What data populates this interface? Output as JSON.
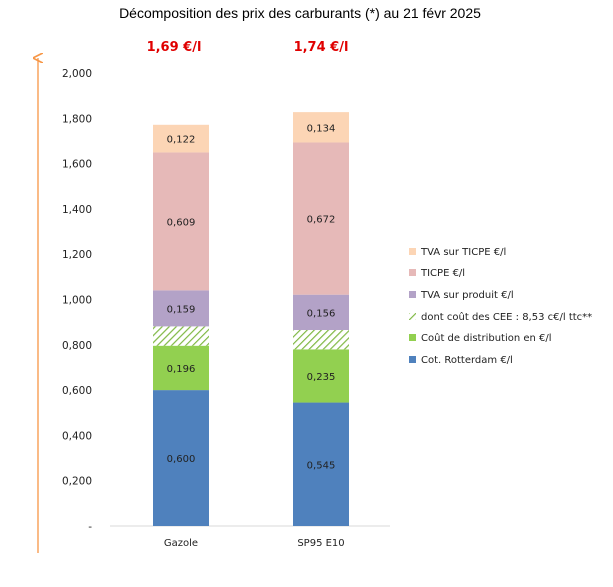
{
  "chart_data": {
    "type": "bar",
    "stacked": true,
    "title": "Décomposition des prix des carburants (*) au 21 févr 2025",
    "categories": [
      "Gazole",
      "SP95 E10"
    ],
    "totals_labels": [
      "1,69 €/l",
      "1,74 €/l"
    ],
    "ylim": [
      0,
      2.0
    ],
    "yticks": [
      "-",
      "0,200",
      "0,400",
      "0,600",
      "0,800",
      "1,000",
      "1,200",
      "1,400",
      "1,600",
      "1,800",
      "2,000"
    ],
    "grid": false,
    "legend_position": "right",
    "series": [
      {
        "name": "Cot. Rotterdam €/l",
        "color": "#4f81bd",
        "values": [
          0.6,
          0.545
        ],
        "labels": [
          "0,600",
          "0,545"
        ]
      },
      {
        "name": "Coût de distribution en €/l",
        "color": "#92d050",
        "values": [
          0.196,
          0.235
        ],
        "labels": [
          "0,196",
          "0,235"
        ]
      },
      {
        "name": "dont coût des CEE : 8,53 c€/l ttc**",
        "color": "#92d050",
        "pattern": "hatch",
        "values": [
          0.0853,
          0.0853
        ],
        "labels": [
          "",
          ""
        ]
      },
      {
        "name": "TVA sur produit €/l",
        "color": "#b3a2c7",
        "values": [
          0.159,
          0.156
        ],
        "labels": [
          "0,159",
          "0,156"
        ]
      },
      {
        "name": "TICPE €/l",
        "color": "#e6b9b8",
        "values": [
          0.609,
          0.672
        ],
        "labels": [
          "0,609",
          "0,672"
        ]
      },
      {
        "name": "TVA sur TICPE €/l",
        "color": "#fcd5b5",
        "values": [
          0.122,
          0.134
        ],
        "labels": [
          "0,122",
          "0,134"
        ]
      }
    ],
    "legend_order": [
      5,
      4,
      3,
      2,
      1,
      0
    ],
    "annotations": [
      "vertical-arrow-left"
    ],
    "axis_color": "#f79646"
  }
}
